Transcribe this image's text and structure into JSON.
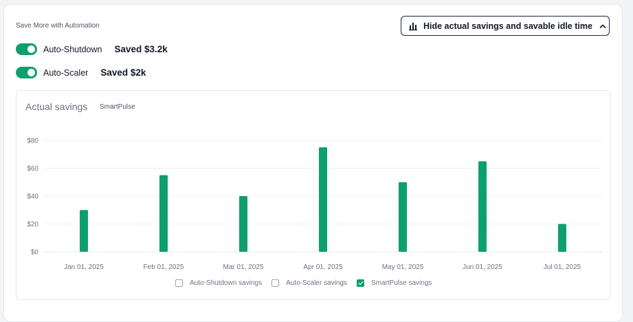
{
  "section_title": "Save More with Automation",
  "hide_button": {
    "label": "Hide actual savings and savable idle time",
    "icon": "bar-chart-icon",
    "chevron": "chevron-up-icon"
  },
  "toggles": [
    {
      "label": "Auto-Shutdown",
      "on": true,
      "saved": "Saved $3.2k"
    },
    {
      "label": "Auto-Scaler",
      "on": true,
      "saved": "Saved $2k"
    }
  ],
  "chart": {
    "title": "Actual savings",
    "subtitle": "SmartPulse"
  },
  "chart_data": {
    "type": "bar",
    "title": "Actual savings",
    "subtitle": "SmartPulse",
    "categories": [
      "Jan 01, 2025",
      "Feb 01, 2025",
      "Mar 01, 2025",
      "Apr 01, 2025",
      "May 01, 2025",
      "Jun 01, 2025",
      "Jul 01, 2025"
    ],
    "series": [
      {
        "name": "SmartPulse savings",
        "values": [
          30,
          55,
          40,
          75,
          50,
          65,
          20
        ],
        "color": "#0e9f6e"
      }
    ],
    "y_ticks": [
      "$0",
      "$20",
      "$40",
      "$60",
      "$80"
    ],
    "ylim": [
      0,
      80
    ],
    "grid": true,
    "legend_position": "bottom"
  },
  "legend": [
    {
      "label": "Auto-Shutdown savings",
      "checked": false
    },
    {
      "label": "Auto-Scaler savings",
      "checked": false
    },
    {
      "label": "SmartPulse savings",
      "checked": true
    }
  ],
  "colors": {
    "accent": "#0e9f6e",
    "grid": "#eef0f2",
    "axis_text": "#6b7280"
  }
}
